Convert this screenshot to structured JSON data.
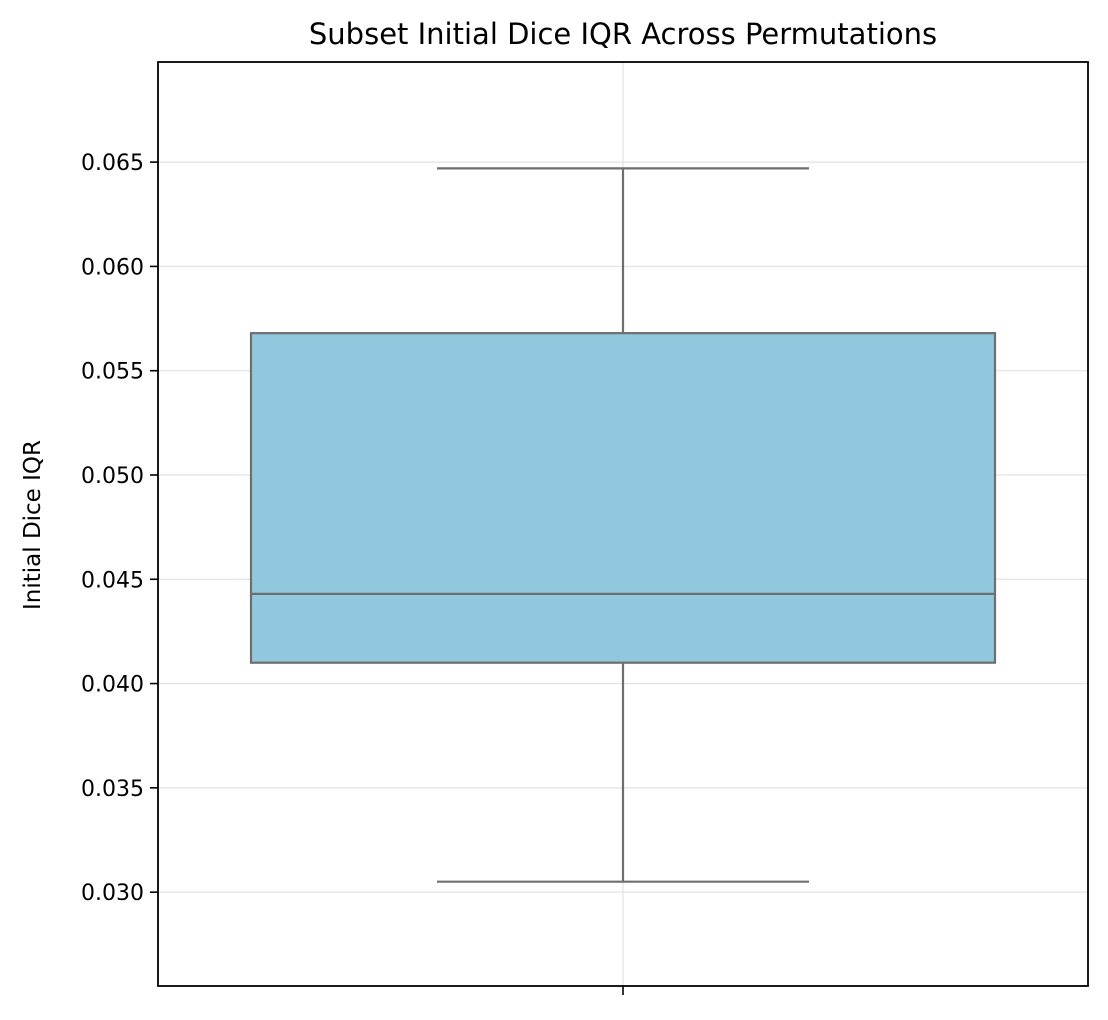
{
  "chart_data": {
    "type": "box",
    "title": "Subset Initial Dice IQR Across Permutations",
    "xlabel": "",
    "ylabel": "Initial Dice IQR",
    "ylim": [
      0.0255,
      0.0698
    ],
    "yticks": [
      0.03,
      0.035,
      0.04,
      0.045,
      0.05,
      0.055,
      0.06,
      0.065
    ],
    "ytick_labels": [
      "0.030",
      "0.035",
      "0.040",
      "0.045",
      "0.050",
      "0.055",
      "0.060",
      "0.065"
    ],
    "grid": true,
    "boxes": [
      {
        "whisker_low": 0.0305,
        "q1": 0.041,
        "median": 0.0443,
        "q3": 0.0568,
        "whisker_high": 0.0647
      }
    ],
    "colors": {
      "box_fill": "#92c8de",
      "box_edge": "#6e6e6e",
      "grid": "#e6e6e6",
      "axes": "#000000"
    }
  }
}
